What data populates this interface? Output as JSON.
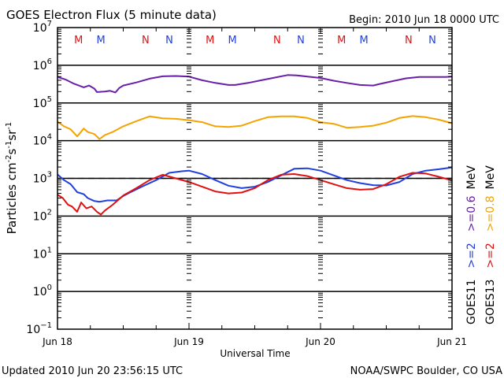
{
  "chart_data": {
    "type": "line",
    "title": "GOES Electron Flux (5 minute data)",
    "subtitle": "Begin: 2010 Jun 18 0000 UTC",
    "xlabel": "Universal Time",
    "ylabel": "Particles cm^-2 s^-1 sr^-1",
    "y_scale": "log",
    "ylim": [
      0.1,
      10000000
    ],
    "y_tick_exponents": [
      7,
      6,
      5,
      4,
      3,
      2,
      1,
      0,
      -1
    ],
    "xlim_days": [
      0,
      3
    ],
    "x_tick_labels": [
      "Jun 18",
      "Jun 19",
      "Jun 20",
      "Jun 21"
    ],
    "threshold": {
      "value": 1000,
      "style": "dashed"
    },
    "day_night_markers": [
      {
        "day": 0.16,
        "label": "M",
        "satellite": "GOES13"
      },
      {
        "day": 0.33,
        "label": "M",
        "satellite": "GOES11"
      },
      {
        "day": 0.67,
        "label": "N",
        "satellite": "GOES13"
      },
      {
        "day": 0.85,
        "label": "N",
        "satellite": "GOES11"
      },
      {
        "day": 1.16,
        "label": "M",
        "satellite": "GOES13"
      },
      {
        "day": 1.33,
        "label": "M",
        "satellite": "GOES11"
      },
      {
        "day": 1.67,
        "label": "N",
        "satellite": "GOES13"
      },
      {
        "day": 1.85,
        "label": "N",
        "satellite": "GOES11"
      },
      {
        "day": 2.16,
        "label": "M",
        "satellite": "GOES13"
      },
      {
        "day": 2.33,
        "label": "M",
        "satellite": "GOES11"
      },
      {
        "day": 2.67,
        "label": "N",
        "satellite": "GOES13"
      },
      {
        "day": 2.85,
        "label": "N",
        "satellite": "GOES11"
      }
    ],
    "legend": {
      "placement": "right",
      "rows": [
        {
          "satellite": "GOES11",
          "entries": [
            {
              "text": ">=2",
              "color": "#1f3fe0"
            },
            {
              "text": ">=0.6",
              "color": "#6a1fa8"
            }
          ],
          "unit": "MeV"
        },
        {
          "satellite": "GOES13",
          "entries": [
            {
              "text": ">=2",
              "color": "#e01010"
            },
            {
              "text": ">=0.8",
              "color": "#f4a300"
            }
          ],
          "unit": "MeV"
        }
      ]
    },
    "series": [
      {
        "name": "GOES11 >=0.6 MeV",
        "color": "#6a1fa8",
        "x_days": [
          0,
          0.06,
          0.12,
          0.2,
          0.24,
          0.28,
          0.3,
          0.36,
          0.4,
          0.44,
          0.47,
          0.5,
          0.6,
          0.7,
          0.8,
          0.9,
          1.0,
          1.1,
          1.2,
          1.3,
          1.35,
          1.45,
          1.55,
          1.65,
          1.75,
          1.82,
          1.9,
          2.0,
          2.1,
          2.2,
          2.3,
          2.4,
          2.45,
          2.55,
          2.65,
          2.75,
          2.85,
          2.95,
          3.0
        ],
        "y": [
          490000,
          420000,
          330000,
          260000,
          290000,
          240000,
          195000,
          200000,
          210000,
          190000,
          250000,
          290000,
          350000,
          440000,
          510000,
          520000,
          500000,
          400000,
          340000,
          300000,
          300000,
          340000,
          400000,
          470000,
          550000,
          540000,
          500000,
          460000,
          390000,
          340000,
          300000,
          290000,
          320000,
          380000,
          450000,
          490000,
          490000,
          490000,
          500000
        ]
      },
      {
        "name": "GOES13 >=0.8 MeV",
        "color": "#f4a300",
        "x_days": [
          0,
          0.05,
          0.1,
          0.15,
          0.2,
          0.23,
          0.28,
          0.32,
          0.36,
          0.42,
          0.5,
          0.6,
          0.7,
          0.8,
          0.9,
          1.0,
          1.1,
          1.2,
          1.3,
          1.4,
          1.5,
          1.6,
          1.7,
          1.8,
          1.9,
          2.0,
          2.1,
          2.2,
          2.3,
          2.4,
          2.5,
          2.6,
          2.7,
          2.8,
          2.9,
          3.0
        ],
        "y": [
          32000,
          24000,
          20000,
          13000,
          21000,
          17000,
          15000,
          11000,
          14000,
          17000,
          24000,
          33000,
          44000,
          39000,
          38000,
          35000,
          31000,
          24000,
          23000,
          25000,
          33000,
          42000,
          44000,
          44000,
          40000,
          31000,
          28000,
          22000,
          23000,
          25000,
          30000,
          40000,
          45000,
          42000,
          36000,
          29000
        ]
      },
      {
        "name": "GOES11 >=2 MeV",
        "color": "#1f3fe0",
        "x_days": [
          0,
          0.05,
          0.1,
          0.15,
          0.2,
          0.23,
          0.28,
          0.32,
          0.38,
          0.45,
          0.5,
          0.55,
          0.65,
          0.75,
          0.85,
          0.95,
          1.0,
          1.1,
          1.2,
          1.3,
          1.4,
          1.5,
          1.6,
          1.7,
          1.8,
          1.9,
          2.0,
          2.1,
          2.2,
          2.3,
          2.4,
          2.5,
          2.6,
          2.7,
          2.8,
          2.9,
          3.0
        ],
        "y": [
          1270,
          900,
          700,
          430,
          380,
          300,
          250,
          240,
          260,
          260,
          340,
          420,
          620,
          900,
          1400,
          1550,
          1600,
          1300,
          900,
          640,
          550,
          600,
          800,
          1200,
          1800,
          1850,
          1600,
          1200,
          900,
          750,
          660,
          650,
          800,
          1300,
          1600,
          1750,
          1950
        ]
      },
      {
        "name": "GOES13 >=2 MeV",
        "color": "#e01010",
        "x_days": [
          0,
          0.04,
          0.08,
          0.11,
          0.15,
          0.18,
          0.22,
          0.26,
          0.3,
          0.33,
          0.36,
          0.42,
          0.5,
          0.6,
          0.7,
          0.8,
          0.9,
          1.0,
          1.1,
          1.2,
          1.3,
          1.4,
          1.5,
          1.6,
          1.7,
          1.8,
          1.9,
          2.0,
          2.1,
          2.2,
          2.3,
          2.4,
          2.5,
          2.6,
          2.7,
          2.8,
          2.9,
          3.0
        ],
        "y": [
          370,
          300,
          200,
          180,
          130,
          230,
          160,
          180,
          130,
          110,
          140,
          200,
          350,
          550,
          900,
          1250,
          1000,
          800,
          600,
          450,
          400,
          420,
          550,
          900,
          1250,
          1300,
          1150,
          900,
          700,
          550,
          500,
          520,
          700,
          1100,
          1400,
          1350,
          1100,
          880
        ]
      }
    ]
  },
  "footer": {
    "updated": "Updated 2010 Jun 20 23:56:15 UTC",
    "credit": "NOAA/SWPC Boulder, CO USA"
  }
}
